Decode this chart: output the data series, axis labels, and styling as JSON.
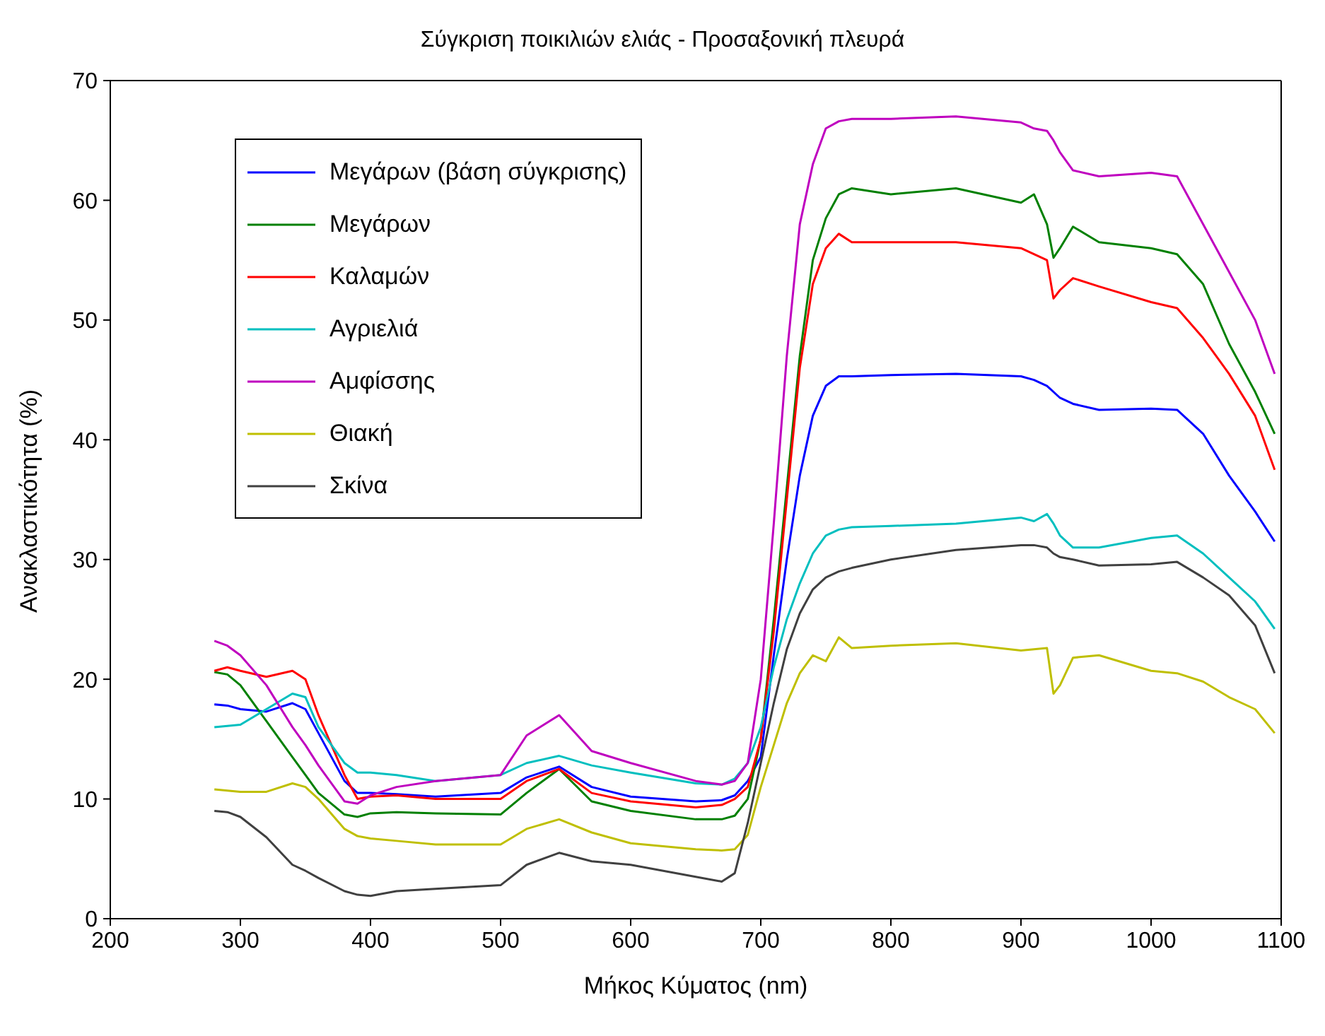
{
  "chart_data": {
    "type": "line",
    "title": "Σύγκριση ποικιλιών ελιάς - Προσαξονική πλευρά",
    "xlabel": "Μήκος Κύματος (nm)",
    "ylabel": "Ανακλαστικότητα (%)",
    "x": [
      280,
      290,
      300,
      320,
      340,
      350,
      360,
      380,
      390,
      400,
      420,
      450,
      500,
      520,
      545,
      570,
      600,
      650,
      670,
      680,
      690,
      700,
      710,
      720,
      730,
      740,
      750,
      760,
      770,
      800,
      850,
      900,
      910,
      920,
      925,
      930,
      940,
      960,
      1000,
      1020,
      1040,
      1060,
      1080,
      1095
    ],
    "series": [
      {
        "name": "Μεγάρων (βάση σύγκρισης)",
        "color": "#0000ff",
        "values": [
          17.9,
          17.8,
          17.5,
          17.3,
          18.0,
          17.5,
          15.5,
          11.5,
          10.5,
          10.5,
          10.4,
          10.2,
          10.5,
          11.8,
          12.7,
          11.0,
          10.2,
          9.8,
          9.9,
          10.3,
          11.5,
          13.5,
          22,
          30,
          37,
          42,
          44.5,
          45.3,
          45.3,
          45.4,
          45.5,
          45.3,
          45.0,
          44.5,
          44,
          43.5,
          43,
          42.5,
          42.6,
          42.5,
          40.5,
          37,
          34,
          31.5
        ]
      },
      {
        "name": "Μεγάρων",
        "color": "#008000",
        "values": [
          20.6,
          20.4,
          19.5,
          16.5,
          13.5,
          12,
          10.5,
          8.7,
          8.5,
          8.8,
          8.9,
          8.8,
          8.7,
          10.5,
          12.5,
          9.8,
          9.0,
          8.3,
          8.3,
          8.6,
          10,
          15,
          25,
          36,
          47,
          55,
          58.5,
          60.5,
          61,
          60.5,
          61,
          59.8,
          60.5,
          58,
          55.2,
          56,
          57.8,
          56.5,
          56,
          55.5,
          53,
          48,
          44,
          40.5
        ]
      },
      {
        "name": "Καλαμών",
        "color": "#ff0000",
        "values": [
          20.7,
          21,
          20.7,
          20.2,
          20.7,
          20,
          17,
          12,
          10,
          10.2,
          10.3,
          10,
          10,
          11.5,
          12.5,
          10.5,
          9.8,
          9.3,
          9.5,
          10,
          11,
          15,
          24,
          35,
          46,
          53,
          56,
          57.2,
          56.5,
          56.5,
          56.5,
          56,
          55.5,
          55,
          51.8,
          52.5,
          53.5,
          52.8,
          51.5,
          51,
          48.5,
          45.5,
          42,
          37.5
        ]
      },
      {
        "name": "Αγριελιά",
        "color": "#00bfbf",
        "values": [
          16.0,
          16.1,
          16.2,
          17.5,
          18.8,
          18.5,
          16,
          13,
          12.2,
          12.2,
          12,
          11.5,
          12,
          13,
          13.6,
          12.8,
          12.2,
          11.3,
          11.2,
          11.7,
          13,
          16,
          21,
          25,
          28,
          30.5,
          32,
          32.5,
          32.7,
          32.8,
          33,
          33.5,
          33.2,
          33.8,
          33,
          32,
          31,
          31,
          31.8,
          32,
          30.5,
          28.5,
          26.5,
          24.2
        ]
      },
      {
        "name": "Αμφίσσης",
        "color": "#bf00bf",
        "values": [
          23.2,
          22.8,
          22,
          19.5,
          16,
          14.5,
          12.8,
          9.8,
          9.6,
          10.3,
          11,
          11.5,
          12,
          15.3,
          17.0,
          14,
          13,
          11.5,
          11.2,
          11.5,
          13,
          20,
          33,
          47,
          58,
          63,
          66,
          66.6,
          66.8,
          66.8,
          67,
          66.5,
          66,
          65.8,
          65,
          64,
          62.5,
          62,
          62.3,
          62,
          58,
          54,
          50,
          45.5
        ]
      },
      {
        "name": "Θιακή",
        "color": "#bfbf00",
        "values": [
          10.8,
          10.7,
          10.6,
          10.6,
          11.3,
          11,
          10,
          7.5,
          6.9,
          6.7,
          6.5,
          6.2,
          6.2,
          7.5,
          8.3,
          7.2,
          6.3,
          5.8,
          5.7,
          5.8,
          7,
          11,
          14.5,
          18,
          20.5,
          22,
          21.5,
          23.5,
          22.6,
          22.8,
          23,
          22.4,
          22.5,
          22.6,
          18.8,
          19.5,
          21.8,
          22,
          20.7,
          20.5,
          19.8,
          18.5,
          17.5,
          15.5
        ]
      },
      {
        "name": "Σκίνα",
        "color": "#404040",
        "values": [
          9.0,
          8.9,
          8.5,
          6.8,
          4.5,
          4.0,
          3.4,
          2.3,
          2.0,
          1.9,
          2.3,
          2.5,
          2.8,
          4.5,
          5.5,
          4.8,
          4.5,
          3.5,
          3.1,
          3.8,
          8,
          13,
          18,
          22.5,
          25.5,
          27.5,
          28.5,
          29,
          29.3,
          30.0,
          30.8,
          31.2,
          31.2,
          31,
          30.5,
          30.2,
          30,
          29.5,
          29.6,
          29.8,
          28.5,
          27,
          24.5,
          20.5
        ]
      }
    ],
    "xlim": [
      200,
      1100
    ],
    "xticks": [
      200,
      300,
      400,
      500,
      600,
      700,
      800,
      900,
      1000,
      1100
    ],
    "ylim": [
      0,
      70
    ],
    "yticks": [
      0,
      10,
      20,
      30,
      40,
      50,
      60,
      70
    ],
    "grid": false,
    "legend": "top left",
    "marker": "none",
    "line_style": "solid"
  }
}
